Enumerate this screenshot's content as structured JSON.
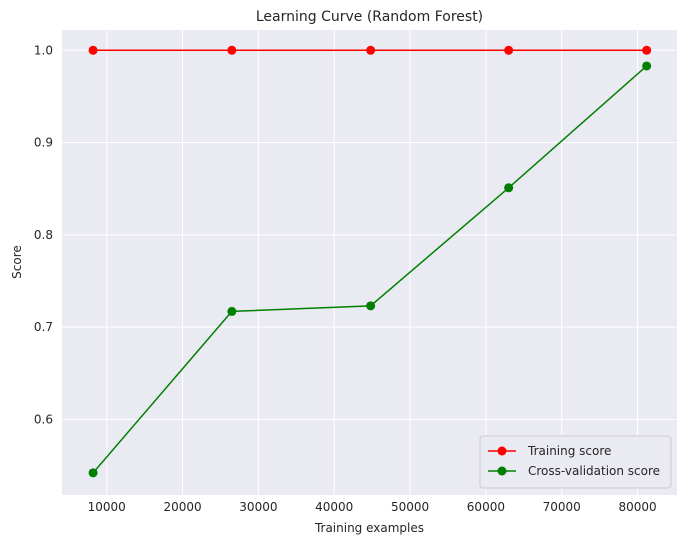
{
  "chart_data": {
    "type": "line",
    "title": "Learning Curve (Random Forest)",
    "xlabel": "Training examples",
    "ylabel": "Score",
    "xlim": [
      4100,
      85200
    ],
    "ylim": [
      0.518,
      1.022
    ],
    "xticks": [
      10000,
      20000,
      30000,
      40000,
      50000,
      60000,
      70000,
      80000
    ],
    "xtick_labels": [
      "10000",
      "20000",
      "30000",
      "40000",
      "50000",
      "60000",
      "70000",
      "80000"
    ],
    "yticks": [
      0.6,
      0.7,
      0.8,
      0.9,
      1.0
    ],
    "ytick_labels": [
      "0.6",
      "0.7",
      "0.8",
      "0.9",
      "1.0"
    ],
    "grid": true,
    "legend_position": "bottom-right",
    "x": [
      8200,
      26500,
      44800,
      63000,
      81200
    ],
    "series": [
      {
        "name": "Training score",
        "color": "#ff0000",
        "values": [
          1.0,
          1.0,
          1.0,
          1.0,
          1.0
        ]
      },
      {
        "name": "Cross-validation score",
        "color": "#008000",
        "values": [
          0.542,
          0.717,
          0.723,
          0.851,
          0.983
        ]
      }
    ]
  },
  "colors": {
    "plot_background": "#eaeaf2",
    "grid": "#ffffff",
    "text": "#262626"
  }
}
